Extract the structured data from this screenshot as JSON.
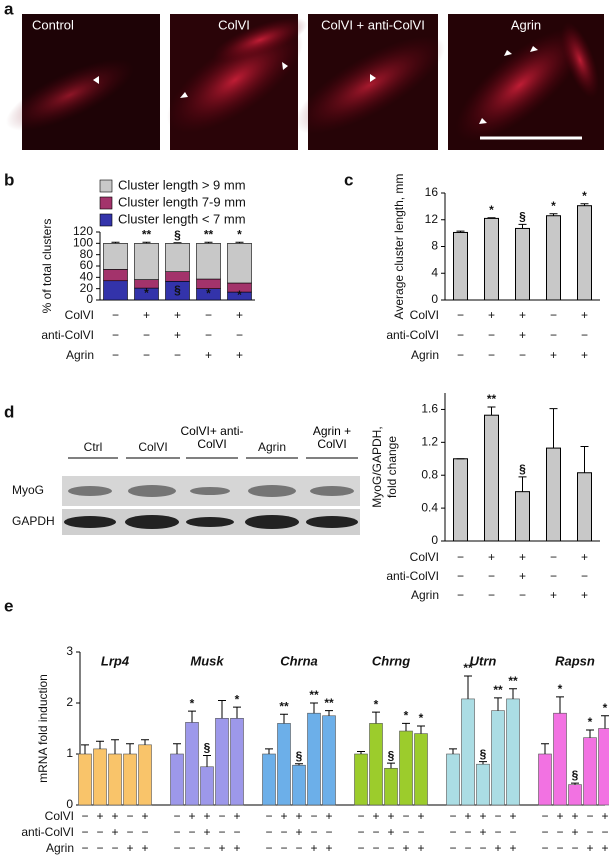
{
  "panel_labels": [
    "a",
    "b",
    "c",
    "d",
    "e"
  ],
  "micrographs": [
    "Control",
    "ColVI",
    "ColVI + anti-ColVI",
    "Agrin"
  ],
  "blot": {
    "lanes": [
      "Ctrl",
      "ColVI",
      "ColVI+ anti-ColVI",
      "Agrin",
      "Agrin + ColVI"
    ],
    "rows": [
      "MyoG",
      "GAPDH"
    ]
  },
  "chart_data": [
    {
      "type": "stacked_bar",
      "ylabel": "% of total clusters",
      "ylim": [
        0,
        120
      ],
      "yticks": [
        0,
        20,
        40,
        60,
        80,
        100,
        120
      ],
      "series": [
        {
          "name": "Cluster length < 7 mm",
          "color": "#3333aa",
          "values": [
            34,
            21,
            33,
            20,
            14
          ],
          "errors": [
            2,
            3,
            1,
            3,
            2
          ]
        },
        {
          "name": "Cluster length 7-9 mm",
          "color": "#a3336b",
          "values": [
            20,
            15,
            17,
            17,
            16
          ],
          "errors": [
            3,
            2,
            1,
            2,
            2
          ]
        },
        {
          "name": "Cluster length > 9 mm",
          "color": "#c8c8c8",
          "values": [
            46,
            64,
            50,
            63,
            70
          ],
          "errors": [
            2,
            2,
            1,
            2,
            2
          ]
        }
      ],
      "annotations": [
        null,
        "**",
        "§",
        "**",
        "*"
      ],
      "segment_annotations": [
        null,
        "*",
        "§",
        "*",
        "*"
      ],
      "treatments": [
        {
          "name": "ColVI",
          "signs": [
            "−",
            "+",
            "+",
            "−",
            "+"
          ]
        },
        {
          "name": "anti-ColVI",
          "signs": [
            "−",
            "−",
            "+",
            "−",
            "−"
          ]
        },
        {
          "name": "Agrin",
          "signs": [
            "−",
            "−",
            "−",
            "+",
            "+"
          ]
        }
      ]
    },
    {
      "type": "bar",
      "ylabel": "Average cluster length, mm",
      "ylim": [
        0,
        16
      ],
      "yticks": [
        0,
        4,
        8,
        12,
        16
      ],
      "color": "#c8c8c8",
      "values": [
        10.1,
        12.2,
        10.7,
        12.6,
        14.1
      ],
      "errors": [
        0.2,
        0.1,
        0.6,
        0.3,
        0.3
      ],
      "annotations": [
        null,
        "*",
        "§",
        "*",
        "*"
      ],
      "treatments": [
        {
          "name": "ColVI",
          "signs": [
            "−",
            "+",
            "+",
            "−",
            "+"
          ]
        },
        {
          "name": "anti-ColVI",
          "signs": [
            "−",
            "−",
            "+",
            "−",
            "−"
          ]
        },
        {
          "name": "Agrin",
          "signs": [
            "−",
            "−",
            "−",
            "+",
            "+"
          ]
        }
      ]
    },
    {
      "type": "bar",
      "ylabel": [
        "MyoG/GAPDH,",
        "fold change"
      ],
      "ylim": [
        0,
        1.8
      ],
      "yticks": [
        0,
        0.4,
        0.8,
        1.2,
        1.6
      ],
      "color": "#c8c8c8",
      "values": [
        1.0,
        1.53,
        0.6,
        1.13,
        0.83
      ],
      "errors": [
        0,
        0.1,
        0.18,
        0.48,
        0.32
      ],
      "annotations": [
        null,
        "**",
        "§",
        null,
        null
      ],
      "treatments": [
        {
          "name": "ColVI",
          "signs": [
            "−",
            "+",
            "+",
            "−",
            "+"
          ]
        },
        {
          "name": "anti-ColVI",
          "signs": [
            "−",
            "−",
            "+",
            "−",
            "−"
          ]
        },
        {
          "name": "Agrin",
          "signs": [
            "−",
            "−",
            "−",
            "+",
            "+"
          ]
        }
      ]
    },
    {
      "type": "grouped_bar",
      "ylabel": "mRNA fold induction",
      "ylim": [
        0,
        3
      ],
      "yticks": [
        0,
        1,
        2,
        3
      ],
      "series": [
        {
          "name": "Lrp4",
          "color": "#f9c46a",
          "values": [
            1.0,
            1.1,
            1.0,
            1.0,
            1.18
          ],
          "errors": [
            0.18,
            0.15,
            0.28,
            0.2,
            0.1
          ],
          "annotations": [
            null,
            null,
            null,
            null,
            null
          ]
        },
        {
          "name": "Musk",
          "color": "#9d98ea",
          "values": [
            1.0,
            1.62,
            0.75,
            1.7,
            1.7
          ],
          "errors": [
            0.2,
            0.22,
            0.22,
            0.35,
            0.22
          ],
          "annotations": [
            null,
            "*",
            "§",
            null,
            "*"
          ]
        },
        {
          "name": "Chrna",
          "color": "#6cafe9",
          "values": [
            1.0,
            1.6,
            0.78,
            1.8,
            1.75
          ],
          "errors": [
            0.1,
            0.18,
            0.03,
            0.2,
            0.1
          ],
          "annotations": [
            null,
            "**",
            "§",
            "**",
            "**"
          ]
        },
        {
          "name": "Chrng",
          "color": "#9ccc2c",
          "values": [
            1.0,
            1.6,
            0.72,
            1.45,
            1.4
          ],
          "errors": [
            0.05,
            0.22,
            0.1,
            0.15,
            0.15
          ],
          "annotations": [
            null,
            "*",
            "§",
            "*",
            "*"
          ]
        },
        {
          "name": "Utrn",
          "color": "#abdde4",
          "values": [
            1.0,
            2.08,
            0.8,
            1.85,
            2.08
          ],
          "errors": [
            0.1,
            0.45,
            0.05,
            0.25,
            0.2
          ],
          "annotations": [
            null,
            "**",
            "§",
            "**",
            "**"
          ]
        },
        {
          "name": "Rapsn",
          "color": "#f272e2",
          "values": [
            1.0,
            1.8,
            0.4,
            1.32,
            1.5
          ],
          "errors": [
            0.2,
            0.32,
            0.03,
            0.15,
            0.25
          ],
          "annotations": [
            null,
            "*",
            "§",
            "*",
            "*"
          ]
        }
      ],
      "treatments": [
        {
          "name": "ColVI",
          "signs": [
            "−",
            "+",
            "+",
            "−",
            "+"
          ]
        },
        {
          "name": "anti-ColVI",
          "signs": [
            "−",
            "−",
            "+",
            "−",
            "−"
          ]
        },
        {
          "name": "Agrin",
          "signs": [
            "−",
            "−",
            "−",
            "+",
            "+"
          ]
        }
      ]
    }
  ]
}
